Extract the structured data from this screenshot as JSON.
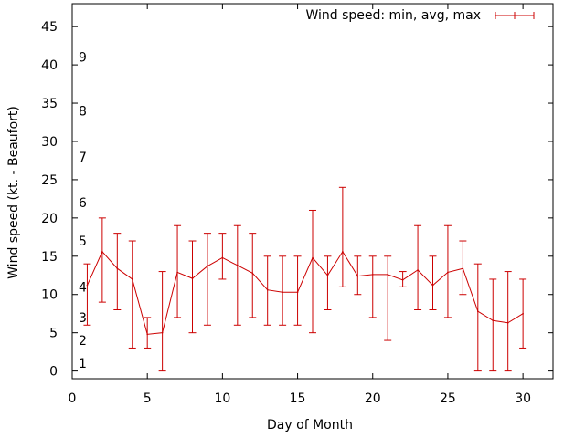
{
  "chart_data": {
    "type": "line",
    "xlabel": "Day of Month",
    "ylabel": "Wind speed (kt. - Beaufort)",
    "xlim": [
      0,
      32
    ],
    "ylim": [
      -1,
      48
    ],
    "x_ticks": [
      0,
      5,
      10,
      15,
      20,
      25,
      30
    ],
    "y_ticks": [
      0,
      5,
      10,
      15,
      20,
      25,
      30,
      35,
      40,
      45
    ],
    "grid": false,
    "legend_position": "top-right",
    "colors": {
      "series": "#cc0000",
      "axis": "#000000"
    },
    "beaufort_scale": [
      {
        "level": "1",
        "knots": 1
      },
      {
        "level": "2",
        "knots": 4
      },
      {
        "level": "3",
        "knots": 7
      },
      {
        "level": "4",
        "knots": 11
      },
      {
        "level": "5",
        "knots": 17
      },
      {
        "level": "6",
        "knots": 22
      },
      {
        "level": "7",
        "knots": 28
      },
      {
        "level": "8",
        "knots": 34
      },
      {
        "level": "9",
        "knots": 41
      }
    ],
    "series": [
      {
        "name": "Wind speed: min, avg, max",
        "x": [
          1,
          2,
          3,
          4,
          5,
          6,
          7,
          8,
          9,
          10,
          11,
          12,
          13,
          14,
          15,
          16,
          17,
          18,
          19,
          20,
          21,
          22,
          23,
          24,
          25,
          26,
          27,
          28,
          29,
          30
        ],
        "avg": [
          11.2,
          15.6,
          13.4,
          12.0,
          4.8,
          5.0,
          12.9,
          12.1,
          13.7,
          14.8,
          13.8,
          12.8,
          10.6,
          10.3,
          10.3,
          14.8,
          12.5,
          15.6,
          12.4,
          12.6,
          12.6,
          11.9,
          13.2,
          11.2,
          12.9,
          13.4,
          7.8,
          6.6,
          6.3,
          7.5
        ],
        "min": [
          6,
          9,
          8,
          3,
          3,
          0,
          7,
          5,
          6,
          12,
          6,
          7,
          6,
          6,
          6,
          5,
          8,
          11,
          10,
          7,
          4,
          11,
          8,
          8,
          7,
          10,
          0,
          0,
          0,
          3
        ],
        "max": [
          14,
          20,
          18,
          17,
          7,
          13,
          19,
          17,
          18,
          18,
          19,
          18,
          15,
          15,
          15,
          21,
          15,
          24,
          15,
          15,
          15,
          13,
          19,
          15,
          19,
          17,
          14,
          12,
          13,
          12
        ]
      }
    ]
  }
}
